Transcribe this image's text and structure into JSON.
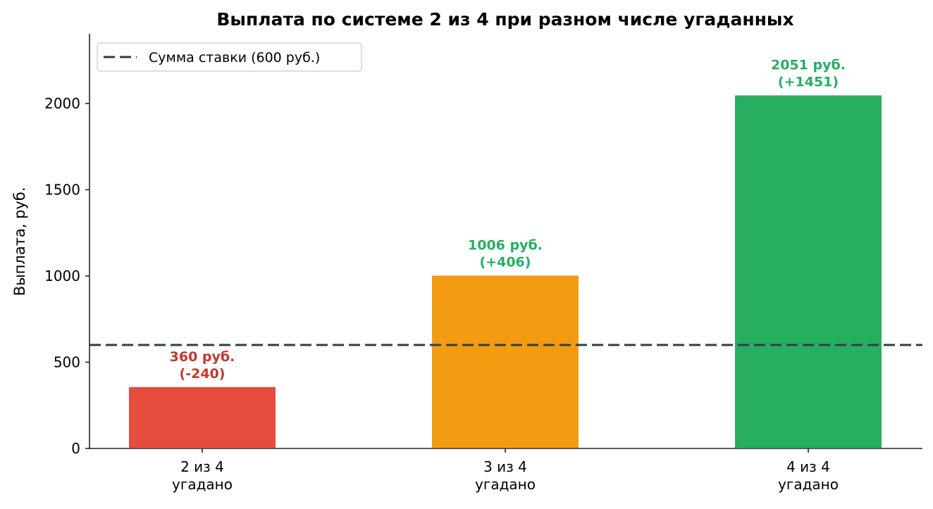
{
  "chart_data": {
    "type": "bar",
    "title": "Выплата по системе 2 из 4 при разном числе угаданных",
    "xlabel": "",
    "ylabel": "Выплата, руб.",
    "ylim": [
      0,
      2400
    ],
    "yticks": [
      0,
      500,
      1000,
      1500,
      2000
    ],
    "grid": false,
    "legend_position": "upper left",
    "categories": [
      "2 из 4\nугадано",
      "3 из 4\nугадано",
      "4 из 4\nугадано"
    ],
    "category_lines": [
      [
        "2 из 4",
        "угадано"
      ],
      [
        "3 из 4",
        "угадано"
      ],
      [
        "4 из 4",
        "угадано"
      ]
    ],
    "values": [
      360,
      1006,
      2051
    ],
    "bar_colors": [
      "#e74c3c",
      "#f39c12",
      "#27ae60"
    ],
    "annotations": [
      {
        "line1": "360 руб.",
        "line2": "(-240)",
        "color": "#c0392b"
      },
      {
        "line1": "1006 руб.",
        "line2": "(+406)",
        "color": "#27ae60"
      },
      {
        "line1": "2051 руб.",
        "line2": "(+1451)",
        "color": "#27ae60"
      }
    ],
    "reference_line": {
      "value": 600,
      "style": "dashed",
      "color": "#2c3e50",
      "label": "Сумма ставки (600 руб.)"
    }
  }
}
